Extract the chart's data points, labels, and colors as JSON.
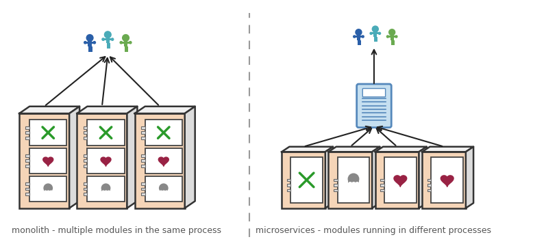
{
  "left_label": "monolith - multiple modules in the same process",
  "right_label": "microservices - modules running in different processes",
  "bg_color": "#ffffff",
  "box_fill": "#f5d5b8",
  "box_fill_dark": "#e8c4a0",
  "box_edge": "#333333",
  "top_face": "#f0f0f0",
  "right_face": "#dcdcdc",
  "inner_fill": "#ffffff",
  "connector_fill": "#e0e0e0",
  "connector_edge": "#666666",
  "person_blue": "#2a5fa8",
  "person_teal": "#4aabb8",
  "person_green": "#6aaa50",
  "cross_color": "#2a9a2a",
  "heart_color": "#992244",
  "ghost_color": "#888888",
  "server_fill": "#c5dff0",
  "server_edge": "#5588bb",
  "divider_color": "#999999",
  "arrow_color": "#222222",
  "text_color": "#555555",
  "text_size": 9
}
